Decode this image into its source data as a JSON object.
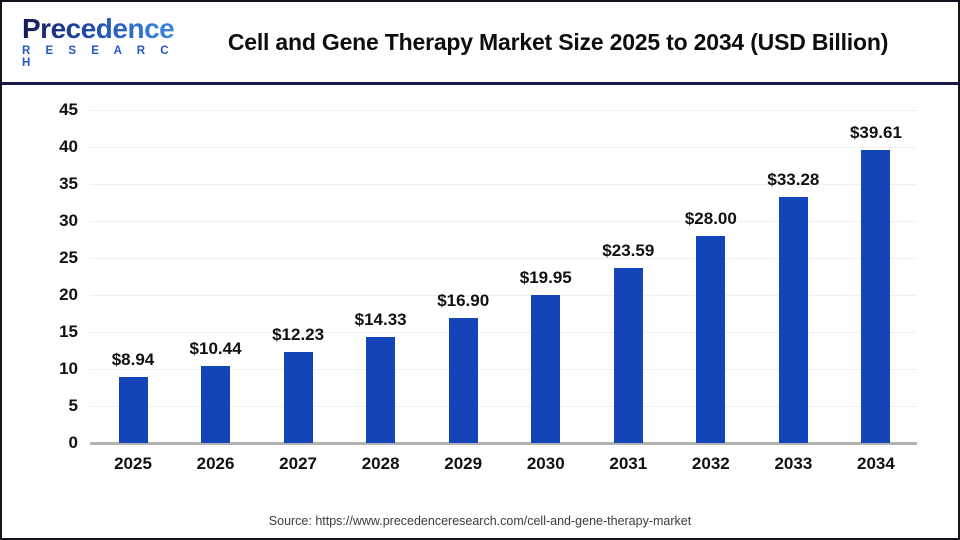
{
  "header": {
    "logo": {
      "name": "Precedence",
      "subtitle": "R E S E A R C H"
    },
    "title": "Cell and Gene Therapy Market Size 2025 to 2034 (USD Billion)"
  },
  "chart_data": {
    "type": "bar",
    "title": "Cell and Gene Therapy Market Size 2025 to 2034 (USD Billion)",
    "categories": [
      "2025",
      "2026",
      "2027",
      "2028",
      "2029",
      "2030",
      "2031",
      "2032",
      "2033",
      "2034"
    ],
    "values": [
      8.94,
      10.44,
      12.23,
      14.33,
      16.9,
      19.95,
      23.59,
      28.0,
      33.28,
      39.61
    ],
    "data_labels": [
      "$8.94",
      "$10.44",
      "$12.23",
      "$14.33",
      "$16.90",
      "$19.95",
      "$23.59",
      "$28.00",
      "$33.28",
      "$39.61"
    ],
    "xlabel": "",
    "ylabel": "",
    "ylim": [
      0,
      45
    ],
    "yticks": [
      0,
      5,
      10,
      15,
      20,
      25,
      30,
      35,
      40,
      45
    ],
    "grid": "horizontal",
    "legend": "none",
    "bar_color": "#1344b8",
    "unit": "USD Billion"
  },
  "footer": {
    "source": "Source: https://www.precedenceresearch.com/cell-and-gene-therapy-market"
  },
  "colors": {
    "bar": "#1344b8",
    "header_separator": "#191945",
    "baseline": "#b2b2b2",
    "gridline": "#f0f0f0",
    "logo_blue": "#2257c5",
    "title_text": "#0e0e0e"
  }
}
